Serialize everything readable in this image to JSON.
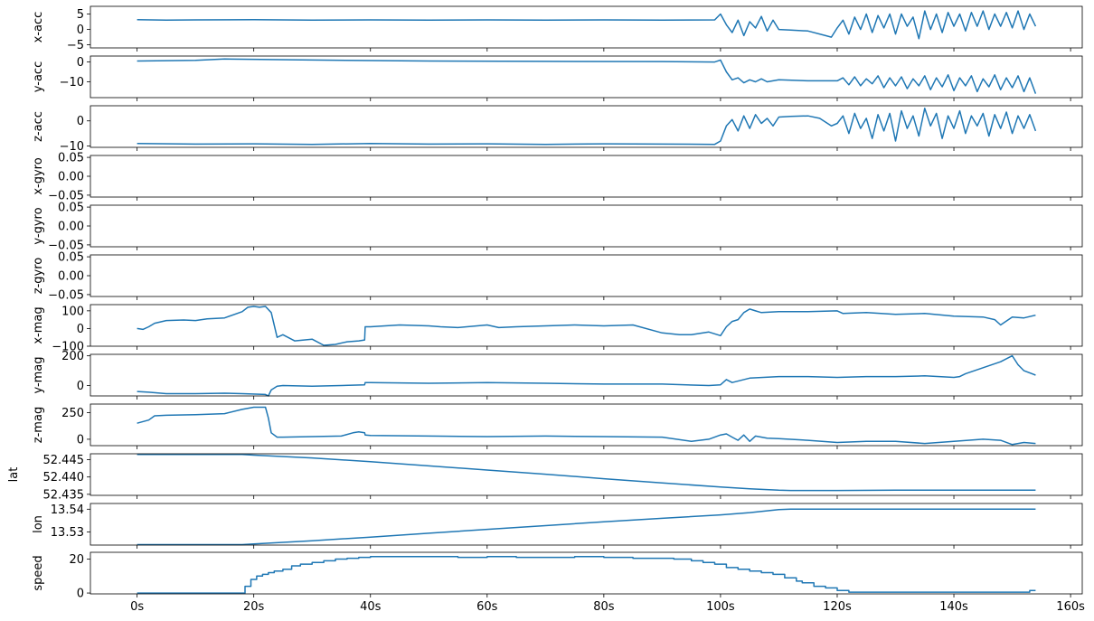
{
  "chart_data": {
    "type": "line",
    "x_unit_suffix": "s",
    "x_domain": [
      -8,
      162
    ],
    "x_ticks": [
      0,
      20,
      40,
      60,
      80,
      100,
      120,
      140,
      160
    ],
    "x_tick_labels": [
      "0s",
      "20s",
      "40s",
      "60s",
      "80s",
      "100s",
      "120s",
      "140s",
      "160s"
    ],
    "line_color": "#1f77b4",
    "panels": [
      {
        "ylabel": "x-acc",
        "ylim": [
          -6,
          7.5
        ],
        "yticks": [
          -5,
          0,
          5
        ],
        "ytick_labels": [
          "−5",
          "0",
          "5"
        ],
        "x": [
          0,
          5,
          10,
          20,
          30,
          40,
          50,
          60,
          70,
          80,
          90,
          99,
          100,
          101,
          102,
          103,
          104,
          105,
          106,
          107,
          108,
          109,
          110,
          112,
          115,
          118,
          119,
          120,
          121,
          122,
          123,
          124,
          125,
          126,
          127,
          128,
          129,
          130,
          131,
          132,
          133,
          134,
          135,
          136,
          137,
          138,
          139,
          140,
          141,
          142,
          143,
          144,
          145,
          146,
          147,
          148,
          149,
          150,
          151,
          152,
          153,
          154
        ],
        "y": [
          3.2,
          3.0,
          3.1,
          3.2,
          3.0,
          3.1,
          3.0,
          3.1,
          3.0,
          3.1,
          3.0,
          3.1,
          5.0,
          1.5,
          -1.0,
          3.0,
          -2.0,
          2.5,
          0.5,
          4.2,
          -0.5,
          3.0,
          0.0,
          -0.2,
          -0.5,
          -2.0,
          -2.5,
          0.5,
          3.0,
          -1.5,
          4.0,
          0.0,
          5.0,
          -1.0,
          4.5,
          0.5,
          5.0,
          -1.5,
          5.0,
          1.0,
          4.0,
          -3.0,
          6.0,
          0.0,
          5.0,
          -1.0,
          5.5,
          1.0,
          5.0,
          -0.5,
          5.5,
          1.0,
          6.0,
          0.0,
          5.0,
          1.0,
          5.5,
          0.5,
          6.0,
          0.0,
          5.0,
          1.0
        ]
      },
      {
        "ylabel": "y-acc",
        "ylim": [
          -18,
          3
        ],
        "yticks": [
          -10,
          0
        ],
        "ytick_labels": [
          "−10",
          "0"
        ],
        "x": [
          0,
          10,
          15,
          30,
          50,
          70,
          90,
          99,
          100,
          101,
          102,
          103,
          104,
          105,
          106,
          107,
          108,
          109,
          110,
          115,
          120,
          121,
          122,
          123,
          124,
          125,
          126,
          127,
          128,
          129,
          130,
          131,
          132,
          133,
          134,
          135,
          136,
          137,
          138,
          139,
          140,
          141,
          142,
          143,
          144,
          145,
          146,
          147,
          148,
          149,
          150,
          151,
          152,
          153,
          154
        ],
        "y": [
          0.5,
          0.8,
          1.5,
          1.0,
          0.5,
          0.3,
          0.2,
          0.0,
          1.0,
          -5.0,
          -9.0,
          -8.0,
          -10.5,
          -9.0,
          -10.0,
          -8.5,
          -10.0,
          -9.5,
          -9.0,
          -9.5,
          -9.5,
          -8.0,
          -11.5,
          -7.5,
          -12.0,
          -8.5,
          -11.0,
          -7.0,
          -13.0,
          -8.0,
          -12.0,
          -7.5,
          -13.5,
          -8.5,
          -12.0,
          -7.0,
          -14.0,
          -8.0,
          -12.5,
          -6.5,
          -14.5,
          -8.0,
          -12.0,
          -7.0,
          -15.0,
          -8.5,
          -12.5,
          -6.5,
          -14.0,
          -8.0,
          -13.0,
          -7.0,
          -15.0,
          -8.0,
          -16.0
        ]
      },
      {
        "ylabel": "z-acc",
        "ylim": [
          -10.5,
          6
        ],
        "yticks": [
          -10,
          0
        ],
        "ytick_labels": [
          "−10",
          "0"
        ],
        "x": [
          0,
          10,
          20,
          30,
          40,
          50,
          60,
          70,
          80,
          90,
          99,
          100,
          101,
          102,
          103,
          104,
          105,
          106,
          107,
          108,
          109,
          110,
          112,
          115,
          117,
          119,
          120,
          121,
          122,
          123,
          124,
          125,
          126,
          127,
          128,
          129,
          130,
          131,
          132,
          133,
          134,
          135,
          136,
          137,
          138,
          139,
          140,
          141,
          142,
          143,
          144,
          145,
          146,
          147,
          148,
          149,
          150,
          151,
          152,
          153,
          154
        ],
        "y": [
          -9.0,
          -9.2,
          -9.1,
          -9.3,
          -9.0,
          -9.2,
          -9.1,
          -9.3,
          -9.1,
          -9.2,
          -9.3,
          -8.0,
          -2.0,
          0.5,
          -4.0,
          2.0,
          -3.0,
          2.5,
          -1.0,
          1.0,
          -2.0,
          1.5,
          1.8,
          2.0,
          1.0,
          -2.0,
          -1.0,
          2.0,
          -5.0,
          3.0,
          -3.0,
          1.0,
          -7.0,
          2.5,
          -4.0,
          3.0,
          -8.0,
          4.0,
          -3.0,
          2.0,
          -6.0,
          5.0,
          -2.0,
          3.0,
          -7.0,
          2.0,
          -3.0,
          4.0,
          -5.0,
          2.0,
          -2.0,
          3.0,
          -6.0,
          2.5,
          -3.0,
          3.5,
          -5.0,
          2.0,
          -3.0,
          2.5,
          -4.0
        ]
      },
      {
        "ylabel": "x-gyro",
        "ylim": [
          -0.055,
          0.055
        ],
        "yticks": [
          -0.05,
          0.0,
          0.05
        ],
        "ytick_labels": [
          "−0.05",
          "0.00",
          "0.05"
        ],
        "x": [],
        "y": []
      },
      {
        "ylabel": "y-gyro",
        "ylim": [
          -0.055,
          0.055
        ],
        "yticks": [
          -0.05,
          0.0,
          0.05
        ],
        "ytick_labels": [
          "−0.05",
          "0.00",
          "0.05"
        ],
        "x": [],
        "y": []
      },
      {
        "ylabel": "z-gyro",
        "ylim": [
          -0.055,
          0.055
        ],
        "yticks": [
          -0.05,
          0.0,
          0.05
        ],
        "ytick_labels": [
          "−0.05",
          "0.00",
          "0.05"
        ],
        "x": [],
        "y": []
      },
      {
        "ylabel": "x-mag",
        "ylim": [
          -100,
          135
        ],
        "yticks": [
          -100,
          0,
          100
        ],
        "ytick_labels": [
          "−100",
          "0",
          "100"
        ],
        "x": [
          0,
          1,
          2,
          3,
          5,
          8,
          10,
          12,
          15,
          18,
          19,
          20,
          21,
          22,
          23,
          24,
          25,
          27,
          30,
          32,
          34,
          36,
          38,
          39,
          39.1,
          40,
          45,
          50,
          52,
          55,
          60,
          62,
          65,
          70,
          75,
          80,
          85,
          90,
          93,
          95,
          98,
          100,
          101,
          102,
          103,
          104,
          105,
          106,
          107,
          110,
          115,
          120,
          121,
          125,
          130,
          135,
          140,
          145,
          147,
          148,
          150,
          152,
          154
        ],
        "y": [
          0,
          -5,
          10,
          30,
          45,
          48,
          45,
          55,
          60,
          95,
          120,
          125,
          120,
          125,
          90,
          -50,
          -35,
          -70,
          -60,
          -95,
          -90,
          -75,
          -70,
          -65,
          10,
          10,
          20,
          15,
          10,
          5,
          20,
          5,
          10,
          15,
          20,
          15,
          20,
          -25,
          -35,
          -35,
          -20,
          -40,
          10,
          40,
          50,
          90,
          110,
          100,
          90,
          95,
          95,
          100,
          85,
          90,
          80,
          85,
          70,
          65,
          50,
          20,
          65,
          60,
          75
        ]
      },
      {
        "ylabel": "y-mag",
        "ylim": [
          -70,
          210
        ],
        "yticks": [
          0,
          200
        ],
        "ytick_labels": [
          "0",
          "200"
        ],
        "x": [
          0,
          2,
          5,
          10,
          15,
          18,
          22,
          22.5,
          23,
          24,
          25,
          30,
          35,
          39,
          39.1,
          40,
          50,
          60,
          70,
          80,
          90,
          98,
          100,
          101,
          102,
          105,
          110,
          115,
          120,
          125,
          130,
          135,
          140,
          141,
          142,
          145,
          148,
          150,
          151,
          152,
          154
        ],
        "y": [
          -40,
          -45,
          -55,
          -55,
          -52,
          -55,
          -60,
          -70,
          -30,
          -5,
          0,
          -5,
          0,
          5,
          20,
          20,
          15,
          20,
          15,
          10,
          10,
          0,
          5,
          40,
          20,
          50,
          60,
          60,
          55,
          60,
          60,
          65,
          55,
          60,
          80,
          120,
          160,
          200,
          140,
          100,
          70
        ]
      },
      {
        "ylabel": "z-mag",
        "ylim": [
          -60,
          330
        ],
        "yticks": [
          0,
          250
        ],
        "ytick_labels": [
          "0",
          "250"
        ],
        "x": [
          0,
          2,
          3,
          5,
          10,
          15,
          18,
          20,
          22,
          22.5,
          23,
          24,
          25,
          30,
          35,
          37,
          38,
          39,
          39.1,
          40,
          50,
          60,
          70,
          80,
          90,
          95,
          98,
          100,
          101,
          102,
          103,
          104,
          105,
          106,
          108,
          110,
          115,
          120,
          125,
          130,
          135,
          140,
          145,
          148,
          150,
          152,
          154
        ],
        "y": [
          150,
          180,
          220,
          225,
          230,
          240,
          280,
          300,
          300,
          200,
          60,
          20,
          20,
          25,
          30,
          60,
          70,
          60,
          40,
          35,
          30,
          25,
          30,
          25,
          20,
          -20,
          0,
          40,
          50,
          20,
          -10,
          40,
          -20,
          30,
          10,
          5,
          -10,
          -30,
          -20,
          -20,
          -40,
          -20,
          0,
          -10,
          -50,
          -30,
          -40
        ]
      },
      {
        "ylabel": "lat",
        "ylim": [
          52.4347,
          52.4467
        ],
        "yticks": [
          52.435,
          52.44,
          52.445
        ],
        "ytick_labels": [
          "52.435",
          "52.440",
          "52.445"
        ],
        "x": [
          0,
          10,
          18,
          20,
          30,
          40,
          50,
          60,
          70,
          80,
          90,
          100,
          105,
          110,
          112,
          120,
          130,
          140,
          154
        ],
        "y": [
          52.4465,
          52.4465,
          52.4465,
          52.4463,
          52.4455,
          52.4444,
          52.4432,
          52.442,
          52.4408,
          52.4395,
          52.4383,
          52.4371,
          52.4366,
          52.4362,
          52.4361,
          52.4361,
          52.4362,
          52.4362,
          52.4362
        ]
      },
      {
        "ylabel": "lon",
        "ylim": [
          13.5243,
          13.5425
        ],
        "yticks": [
          13.53,
          13.54
        ],
        "ytick_labels": [
          "13.53",
          "13.54"
        ],
        "x": [
          0,
          10,
          18,
          20,
          30,
          40,
          50,
          60,
          70,
          80,
          90,
          100,
          105,
          110,
          112,
          120,
          130,
          140,
          154
        ],
        "y": [
          13.5245,
          13.5245,
          13.5245,
          13.5248,
          13.5262,
          13.5278,
          13.5295,
          13.5312,
          13.5328,
          13.5345,
          13.536,
          13.5375,
          13.5385,
          13.5398,
          13.54,
          13.54,
          13.54,
          13.54,
          13.54
        ]
      },
      {
        "ylabel": "speed",
        "ylim": [
          -0.5,
          24
        ],
        "yticks": [
          0,
          20
        ],
        "ytick_labels": [
          "0",
          "20"
        ],
        "step": true,
        "x": [
          0,
          18,
          18.5,
          19.5,
          20.5,
          21.5,
          22.5,
          23.5,
          25,
          26.5,
          28,
          30,
          32,
          34,
          36,
          38,
          40,
          45,
          50,
          55,
          60,
          65,
          70,
          75,
          80,
          85,
          90,
          92,
          95,
          97,
          99,
          101,
          103,
          105,
          107,
          109,
          111,
          113,
          114,
          116,
          118,
          120,
          122,
          125,
          130,
          140,
          150,
          153,
          154
        ],
        "y": [
          0,
          0,
          4,
          8,
          10,
          11,
          12,
          13,
          14,
          16,
          17,
          18,
          19,
          20,
          20.5,
          21,
          21.5,
          21.5,
          21.5,
          21,
          21.5,
          21,
          21,
          21.5,
          21,
          20.5,
          20.5,
          20,
          19,
          18,
          17,
          15,
          14,
          13,
          12,
          11,
          9,
          7,
          6,
          4,
          3,
          1.5,
          0.5,
          0.5,
          0.5,
          0.5,
          0.5,
          1.5,
          1.5
        ]
      }
    ]
  }
}
